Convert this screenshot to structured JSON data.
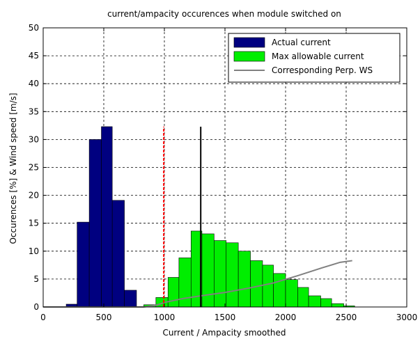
{
  "chart_data": {
    "type": "bar",
    "title": "current/ampacity occurences when module switched on",
    "xlabel": "Current / Ampacity smoothed",
    "ylabel": "Occurences [%] & Wind speed [m/s]",
    "xlim": [
      0,
      3000
    ],
    "ylim": [
      0,
      50
    ],
    "xticks": [
      "0",
      "500",
      "1000",
      "1500",
      "2000",
      "2500",
      "3000"
    ],
    "yticks": [
      "0",
      "5",
      "10",
      "15",
      "20",
      "25",
      "30",
      "35",
      "40",
      "45",
      "50"
    ],
    "grid": true,
    "legend_position": "top-right",
    "series": [
      {
        "name": "Actual current",
        "type": "bar",
        "color": "#000080",
        "bins": [
          {
            "x0": 190,
            "x1": 280,
            "value": 0.5
          },
          {
            "x0": 280,
            "x1": 380,
            "value": 15.2
          },
          {
            "x0": 380,
            "x1": 480,
            "value": 30.0
          },
          {
            "x0": 480,
            "x1": 570,
            "value": 32.3
          },
          {
            "x0": 570,
            "x1": 670,
            "value": 19.1
          },
          {
            "x0": 670,
            "x1": 770,
            "value": 3.0
          }
        ]
      },
      {
        "name": "Max allowable current",
        "type": "bar",
        "color": "#00ee00",
        "bins": [
          {
            "x0": 830,
            "x1": 930,
            "value": 0.4
          },
          {
            "x0": 930,
            "x1": 1030,
            "value": 1.7
          },
          {
            "x0": 1030,
            "x1": 1120,
            "value": 5.3
          },
          {
            "x0": 1120,
            "x1": 1220,
            "value": 8.8
          },
          {
            "x0": 1220,
            "x1": 1310,
            "value": 13.6
          },
          {
            "x0": 1310,
            "x1": 1410,
            "value": 13.1
          },
          {
            "x0": 1410,
            "x1": 1510,
            "value": 11.9
          },
          {
            "x0": 1510,
            "x1": 1610,
            "value": 11.5
          },
          {
            "x0": 1610,
            "x1": 1710,
            "value": 10.0
          },
          {
            "x0": 1710,
            "x1": 1810,
            "value": 8.3
          },
          {
            "x0": 1810,
            "x1": 1900,
            "value": 7.5
          },
          {
            "x0": 1900,
            "x1": 2000,
            "value": 6.0
          },
          {
            "x0": 2000,
            "x1": 2100,
            "value": 4.9
          },
          {
            "x0": 2100,
            "x1": 2190,
            "value": 3.5
          },
          {
            "x0": 2190,
            "x1": 2290,
            "value": 2.0
          },
          {
            "x0": 2290,
            "x1": 2380,
            "value": 1.5
          },
          {
            "x0": 2380,
            "x1": 2480,
            "value": 0.6
          },
          {
            "x0": 2480,
            "x1": 2570,
            "value": 0.2
          }
        ]
      },
      {
        "name": "Corresponding Perp. WS",
        "type": "line",
        "color": "#808080",
        "x": [
          0,
          830,
          930,
          1000,
          1150,
          1300,
          1500,
          1700,
          1900,
          2100,
          2300,
          2450,
          2550
        ],
        "y": [
          0,
          0,
          0.3,
          0.8,
          1.5,
          2.0,
          2.6,
          3.4,
          4.3,
          5.6,
          7.0,
          8.0,
          8.3
        ]
      }
    ],
    "reference_lines": [
      {
        "color": "#ff0000",
        "style": "dashed",
        "x": 995,
        "y0": 0,
        "y1": 32.3
      },
      {
        "color": "#000000",
        "style": "solid",
        "x": 1300,
        "y0": 0,
        "y1": 32.3
      }
    ]
  }
}
